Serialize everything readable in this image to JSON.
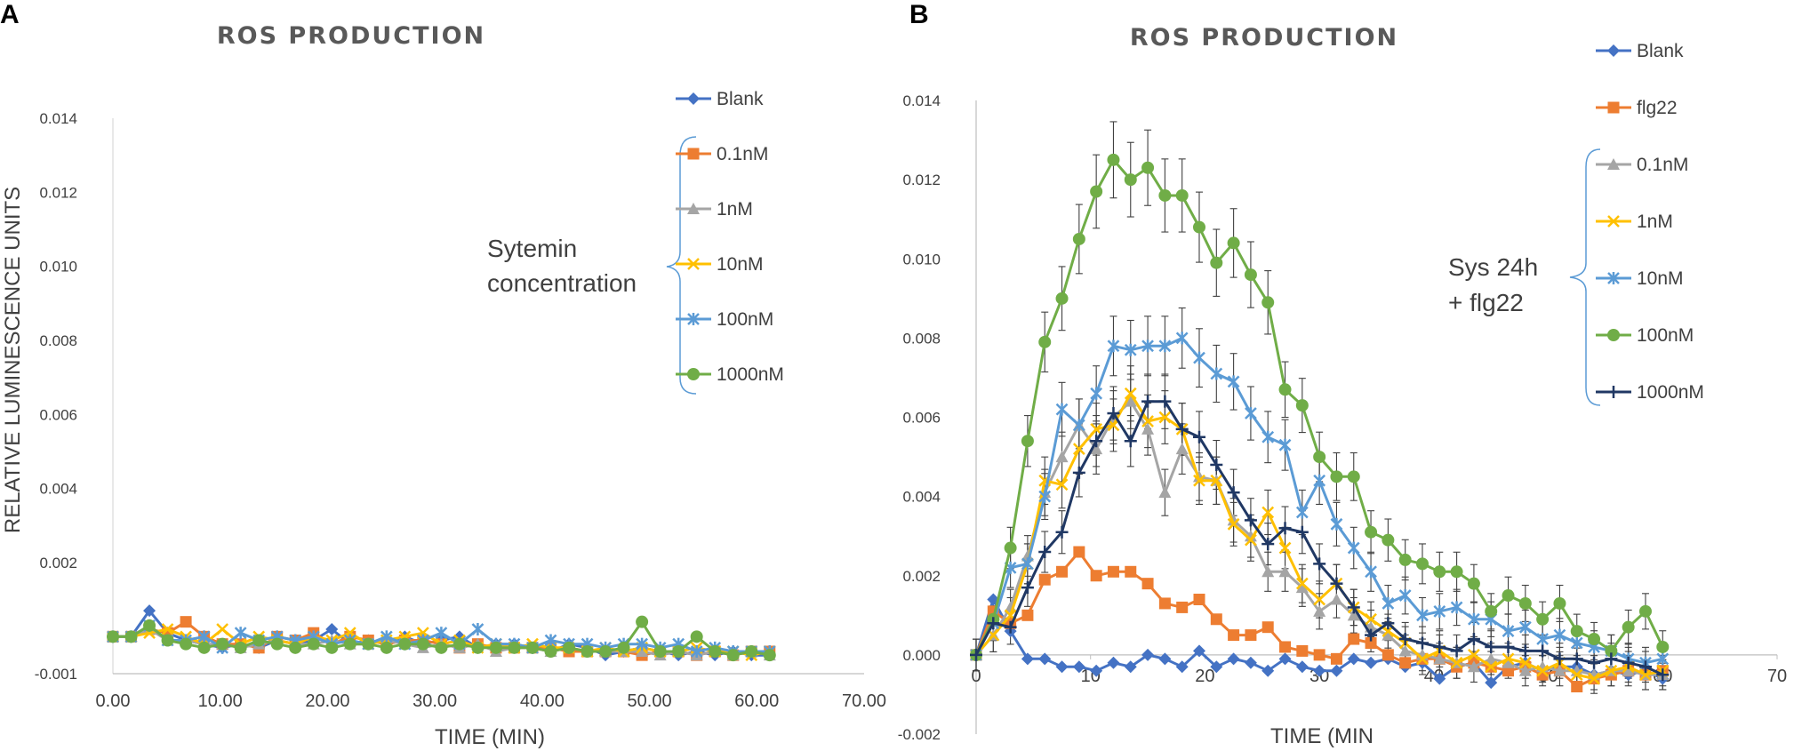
{
  "chart_data": [
    {
      "panel": "A",
      "type": "line",
      "title": "ROS PRODUCTION",
      "xlabel": "TIME (MIN)",
      "ylabel": "RELATIVE LUMINESCENCE UNITS",
      "xlim": [
        0,
        70
      ],
      "ylim": [
        -0.001,
        0.014
      ],
      "xticks": [
        "0.00",
        "10.00",
        "20.00",
        "30.00",
        "40.00",
        "50.00",
        "60.00",
        "70.00"
      ],
      "yticks": [
        "-0.001",
        "0.002",
        "0.004",
        "0.006",
        "0.008",
        "0.010",
        "0.012",
        "0.014"
      ],
      "annotation": [
        "Sytemin",
        "concentration"
      ],
      "x": [
        0,
        1.7,
        3.4,
        5.1,
        6.8,
        8.5,
        10.2,
        11.9,
        13.6,
        15.3,
        17,
        18.7,
        20.4,
        22.1,
        23.8,
        25.5,
        27.2,
        28.9,
        30.6,
        32.3,
        34,
        35.7,
        37.4,
        39.1,
        40.8,
        42.5,
        44.2,
        45.9,
        47.6,
        49.3,
        51,
        52.7,
        54.4,
        56.1,
        57.8,
        59.5,
        61.2
      ],
      "series": [
        {
          "name": "Blank",
          "color": "#4472C4",
          "marker": "diamond",
          "values": [
            0,
            0,
            0.0007,
            0.0001,
            -0.0001,
            -0.0002,
            -0.0003,
            -0.0002,
            -0.0003,
            -0.0001,
            -0.0002,
            -0.0001,
            0.0002,
            -0.0002,
            -0.0001,
            -0.0002,
            0,
            -0.0002,
            -0.0001,
            0,
            -0.0003,
            -0.0002,
            -0.0002,
            -0.0003,
            -0.0004,
            -0.0002,
            -0.0003,
            -0.0005,
            -0.0004,
            -0.0003,
            -0.0004,
            -0.0005,
            -0.0004,
            -0.0005,
            -0.0004,
            -0.0005,
            -0.0005
          ]
        },
        {
          "name": "0.1nM",
          "color": "#ED7D31",
          "marker": "square",
          "values": [
            0,
            0,
            0.0002,
            0.0001,
            0.0004,
            0,
            -0.0002,
            -0.0002,
            -0.0003,
            0,
            -0.0001,
            0.0001,
            -0.0002,
            0,
            -0.0001,
            -0.0002,
            -0.0001,
            -0.0001,
            -0.0002,
            -0.0003,
            -0.0002,
            -0.0003,
            -0.0003,
            -0.0003,
            -0.0003,
            -0.0004,
            -0.0004,
            -0.0004,
            -0.0004,
            -0.0005,
            -0.0004,
            -0.0004,
            -0.0005,
            -0.0004,
            -0.0005,
            -0.0004,
            -0.0004
          ]
        },
        {
          "name": "1nM",
          "color": "#A5A5A5",
          "marker": "triangle",
          "values": [
            0,
            0,
            0.0002,
            -0.0001,
            -0.0001,
            -0.0002,
            -0.0002,
            -0.0003,
            -0.0002,
            -0.0001,
            -0.0002,
            -0.0002,
            -0.0001,
            -0.0002,
            -0.0002,
            -0.0001,
            -0.0002,
            -0.0003,
            -0.0002,
            -0.0003,
            -0.0002,
            -0.0004,
            -0.0003,
            -0.0003,
            -0.0004,
            -0.0003,
            -0.0004,
            -0.0004,
            -0.0004,
            -0.0004,
            -0.0005,
            -0.0004,
            -0.0005,
            -0.0004,
            -0.0005,
            -0.0004,
            -0.0005
          ]
        },
        {
          "name": "10nM",
          "color": "#FFC000",
          "marker": "x",
          "values": [
            0,
            0,
            0.0001,
            0.0002,
            0,
            -0.0002,
            0.0002,
            -0.0002,
            0,
            -0.0001,
            -0.0002,
            0,
            -0.0001,
            0.0001,
            -0.0002,
            -0.0001,
            0,
            0.0001,
            -0.0002,
            -0.0001,
            -0.0003,
            -0.0002,
            -0.0003,
            -0.0002,
            -0.0003,
            -0.0003,
            -0.0004,
            -0.0003,
            -0.0004,
            -0.0003,
            -0.0004,
            -0.0004,
            -0.0003,
            -0.0004,
            -0.0004,
            -0.0005,
            -0.0004
          ]
        },
        {
          "name": "100nM",
          "color": "#5B9BD5",
          "marker": "star",
          "values": [
            0,
            0,
            0.0003,
            -0.0001,
            -0.0001,
            0,
            -0.0003,
            0.0001,
            -0.0001,
            0,
            -0.0001,
            0,
            -0.0002,
            -0.0001,
            -0.0002,
            0,
            -0.0002,
            -0.0001,
            0.0001,
            -0.0002,
            0.0002,
            -0.0002,
            -0.0002,
            -0.0003,
            -0.0001,
            -0.0002,
            -0.0002,
            -0.0003,
            -0.0002,
            -0.0002,
            -0.0003,
            -0.0002,
            -0.0004,
            -0.0003,
            -0.0004,
            -0.0004,
            -0.0004
          ]
        },
        {
          "name": "1000nM",
          "color": "#70AD47",
          "marker": "circle",
          "values": [
            0,
            0,
            0.0003,
            -0.0001,
            -0.0002,
            -0.0003,
            -0.0002,
            -0.0003,
            -0.0001,
            -0.0002,
            -0.0003,
            -0.0002,
            -0.0003,
            -0.0002,
            -0.0002,
            -0.0003,
            -0.0002,
            -0.0002,
            -0.0003,
            -0.0002,
            -0.0003,
            -0.0003,
            -0.0003,
            -0.0003,
            -0.0004,
            -0.0003,
            -0.0004,
            -0.0004,
            -0.0003,
            0.0004,
            -0.0004,
            -0.0004,
            0,
            -0.0004,
            -0.0005,
            -0.0004,
            -0.0005
          ]
        }
      ]
    },
    {
      "panel": "B",
      "type": "line",
      "title": "ROS PRODUCTION",
      "xlabel": "TIME (MIN",
      "ylabel": "",
      "xlim": [
        0,
        70
      ],
      "ylim": [
        -0.002,
        0.014
      ],
      "xticks": [
        "0",
        "10",
        "20",
        "30",
        "40",
        "50",
        "60",
        "70"
      ],
      "yticks": [
        "-0.002",
        "0.000",
        "0.002",
        "0.004",
        "0.006",
        "0.008",
        "0.010",
        "0.012",
        "0.014"
      ],
      "annotation": [
        "Sys 24h",
        "+ flg22"
      ],
      "x": [
        0,
        1.5,
        3,
        4.5,
        6,
        7.5,
        9,
        10.5,
        12,
        13.5,
        15,
        16.5,
        18,
        19.5,
        21,
        22.5,
        24,
        25.5,
        27,
        28.5,
        30,
        31.5,
        33,
        34.5,
        36,
        37.5,
        39,
        40.5,
        42,
        43.5,
        45,
        46.5,
        48,
        49.5,
        51,
        52.5,
        54,
        55.5,
        57,
        58.5,
        60
      ],
      "series": [
        {
          "name": "Blank",
          "color": "#4472C4",
          "marker": "diamond",
          "errors": false,
          "values": [
            0,
            0.0014,
            0.0006,
            -0.0001,
            -0.0001,
            -0.0003,
            -0.0003,
            -0.0004,
            -0.0002,
            -0.0003,
            0,
            -0.0001,
            -0.0003,
            0.0001,
            -0.0003,
            -0.0001,
            -0.0002,
            -0.0004,
            -0.0001,
            -0.0003,
            -0.0004,
            -0.0004,
            -0.0001,
            -0.0002,
            -0.0001,
            -0.0003,
            -0.0002,
            -0.0006,
            -0.0003,
            -0.0002,
            -0.0007,
            -0.0003,
            -0.0002,
            -0.0004,
            -0.0003,
            -0.0003,
            -0.0005,
            -0.0004,
            -0.0005,
            -0.0004,
            -0.0006
          ]
        },
        {
          "name": "flg22",
          "color": "#ED7D31",
          "marker": "square",
          "errors": false,
          "values": [
            0,
            0.0011,
            0.0008,
            0.001,
            0.0019,
            0.0021,
            0.0026,
            0.002,
            0.0021,
            0.0021,
            0.0018,
            0.0013,
            0.0012,
            0.0014,
            0.0009,
            0.0005,
            0.0005,
            0.0007,
            0.0002,
            0.0001,
            0,
            -0.0001,
            0.0004,
            0.0003,
            0,
            -0.0002,
            -0.0001,
            -0.0001,
            -0.0003,
            -0.0002,
            -0.0003,
            -0.0004,
            -0.0003,
            -0.0005,
            -0.0004,
            -0.0008,
            -0.0006,
            -0.0005,
            -0.0004,
            -0.0005,
            -0.0004
          ]
        },
        {
          "name": "0.1nM",
          "color": "#A5A5A5",
          "marker": "triangle",
          "errors": true,
          "values": [
            0,
            0.0005,
            0.0012,
            0.0025,
            0.0041,
            0.005,
            0.0058,
            0.0052,
            0.006,
            0.0064,
            0.0057,
            0.0041,
            0.0052,
            0.0045,
            0.0044,
            0.0034,
            0.003,
            0.0021,
            0.0021,
            0.0017,
            0.0011,
            0.0014,
            0.001,
            0.0007,
            0.0005,
            0.0001,
            0,
            -0.0001,
            -0.0002,
            -0.0003,
            -0.0001,
            -0.0002,
            -0.0004,
            -0.0003,
            -0.0004,
            -0.0004,
            -0.0005,
            -0.0004,
            -0.0004,
            -0.0005,
            -0.0005
          ]
        },
        {
          "name": "1nM",
          "color": "#FFC000",
          "marker": "x",
          "errors": true,
          "values": [
            0,
            0.0005,
            0.001,
            0.0023,
            0.0044,
            0.0043,
            0.0052,
            0.0057,
            0.0058,
            0.0066,
            0.0059,
            0.006,
            0.0057,
            0.0044,
            0.0044,
            0.0033,
            0.0029,
            0.0036,
            0.0027,
            0.0018,
            0.0014,
            0.0018,
            0.0012,
            0.0009,
            0.0006,
            0.0003,
            -0.0001,
            0.0001,
            -0.0002,
            0,
            -0.0003,
            -0.0001,
            -0.0002,
            -0.0004,
            -0.0002,
            -0.0005,
            -0.0006,
            -0.0004,
            -0.0003,
            -0.0005,
            -0.0004
          ]
        },
        {
          "name": "10nM",
          "color": "#5B9BD5",
          "marker": "star",
          "errors": true,
          "values": [
            0,
            0.0008,
            0.0022,
            0.0023,
            0.004,
            0.0062,
            0.0058,
            0.0066,
            0.0078,
            0.0077,
            0.0078,
            0.0078,
            0.008,
            0.0075,
            0.0071,
            0.0069,
            0.0061,
            0.0055,
            0.0053,
            0.0036,
            0.0044,
            0.0033,
            0.0027,
            0.0021,
            0.0013,
            0.0015,
            0.001,
            0.0011,
            0.0012,
            0.0009,
            0.0009,
            0.0006,
            0.0007,
            0.0004,
            0.0005,
            0.0003,
            0.0002,
            0.0001,
            -0.0001,
            -0.0002,
            -0.0001
          ]
        },
        {
          "name": "100nM",
          "color": "#70AD47",
          "marker": "circle",
          "errors": true,
          "values": [
            0,
            0.0009,
            0.0027,
            0.0054,
            0.0079,
            0.009,
            0.0105,
            0.0117,
            0.0125,
            0.012,
            0.0123,
            0.0116,
            0.0116,
            0.0108,
            0.0099,
            0.0104,
            0.0096,
            0.0089,
            0.0067,
            0.0063,
            0.005,
            0.0045,
            0.0045,
            0.0031,
            0.0029,
            0.0024,
            0.0023,
            0.0021,
            0.0021,
            0.0018,
            0.0011,
            0.0015,
            0.0013,
            0.0009,
            0.0013,
            0.0006,
            0.0004,
            0.0001,
            0.0007,
            0.0011,
            0.0002
          ]
        },
        {
          "name": "1000nM",
          "color": "#203864",
          "marker": "plus",
          "errors": true,
          "values": [
            0,
            0.0008,
            0.0007,
            0.0017,
            0.0026,
            0.0031,
            0.0046,
            0.0054,
            0.0061,
            0.0054,
            0.0064,
            0.0064,
            0.0057,
            0.0055,
            0.0048,
            0.0041,
            0.0034,
            0.0028,
            0.0032,
            0.0031,
            0.0023,
            0.0018,
            0.0012,
            0.0005,
            0.0008,
            0.0004,
            0.0003,
            0.0002,
            0.0001,
            0.0004,
            0.0002,
            0.0002,
            0.0001,
            0.0001,
            -0.0001,
            -0.0001,
            -0.0002,
            -0.0001,
            -0.0002,
            -0.0003,
            -0.0005
          ]
        }
      ]
    }
  ]
}
